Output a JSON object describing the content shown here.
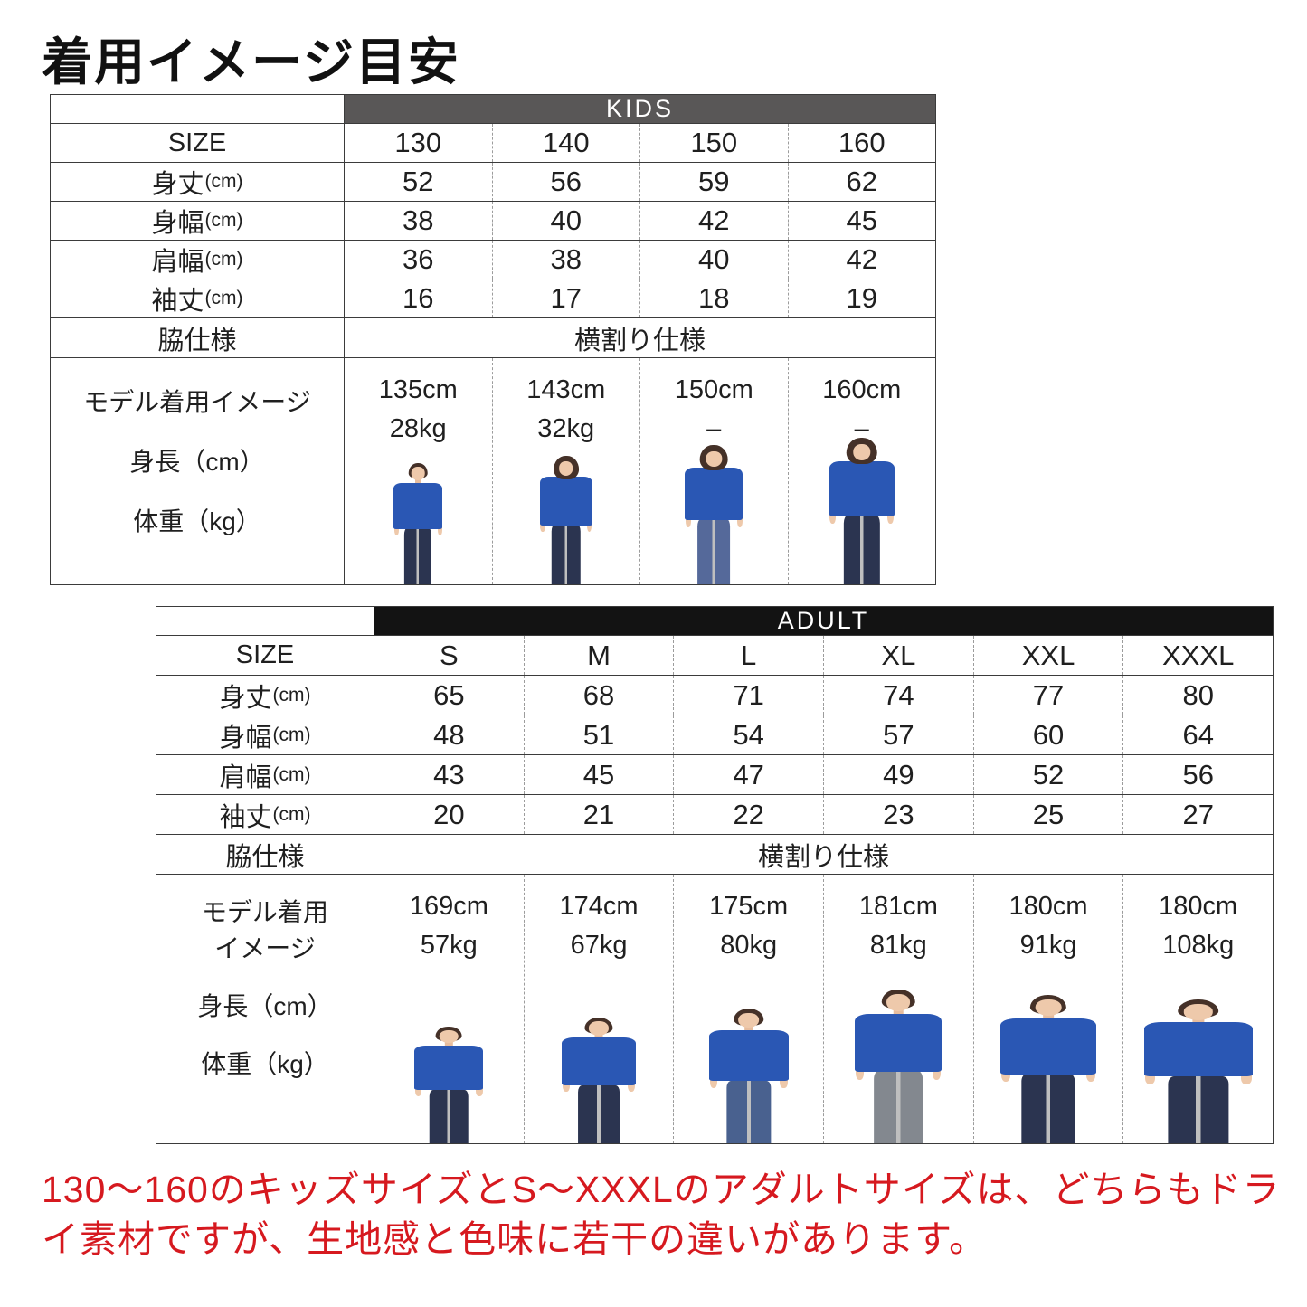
{
  "page": {
    "title": "着用イメージ目安"
  },
  "colors": {
    "kids_bar": "#595757",
    "adult_bar": "#131313",
    "tshirt_blue": "#2a57b4",
    "footnote_red": "#d6191f",
    "table_border": "#3b3b3b"
  },
  "kids_table": {
    "header": "KIDS",
    "size_label": "SIZE",
    "sizes": [
      "130",
      "140",
      "150",
      "160"
    ],
    "rows": [
      {
        "label": "身丈",
        "unit": "(cm)",
        "values": [
          "52",
          "56",
          "59",
          "62"
        ]
      },
      {
        "label": "身幅",
        "unit": "(cm)",
        "values": [
          "38",
          "40",
          "42",
          "45"
        ]
      },
      {
        "label": "肩幅",
        "unit": "(cm)",
        "values": [
          "36",
          "38",
          "40",
          "42"
        ]
      },
      {
        "label": "袖丈",
        "unit": "(cm)",
        "values": [
          "16",
          "17",
          "18",
          "19"
        ]
      }
    ],
    "side_row": {
      "label": "脇仕様",
      "value": "横割り仕様"
    },
    "model_row": {
      "label_lines": [
        "モデル着用イメージ",
        "身長（cm）",
        "体重（kg）"
      ],
      "models": [
        {
          "height": "135cm",
          "weight": "28kg"
        },
        {
          "height": "143cm",
          "weight": "32kg"
        },
        {
          "height": "150cm",
          "weight": "–"
        },
        {
          "height": "160cm",
          "weight": "–"
        }
      ]
    }
  },
  "adult_table": {
    "header": "ADULT",
    "size_label": "SIZE",
    "sizes": [
      "S",
      "M",
      "L",
      "XL",
      "XXL",
      "XXXL"
    ],
    "rows": [
      {
        "label": "身丈",
        "unit": "(cm)",
        "values": [
          "65",
          "68",
          "71",
          "74",
          "77",
          "80"
        ]
      },
      {
        "label": "身幅",
        "unit": "(cm)",
        "values": [
          "48",
          "51",
          "54",
          "57",
          "60",
          "64"
        ]
      },
      {
        "label": "肩幅",
        "unit": "(cm)",
        "values": [
          "43",
          "45",
          "47",
          "49",
          "52",
          "56"
        ]
      },
      {
        "label": "袖丈",
        "unit": "(cm)",
        "values": [
          "20",
          "21",
          "22",
          "23",
          "25",
          "27"
        ]
      }
    ],
    "side_row": {
      "label": "脇仕様",
      "value": "横割り仕様"
    },
    "model_row": {
      "label_lines": [
        "モデル着用",
        "イメージ",
        "身長（cm）",
        "体重（kg）"
      ],
      "models": [
        {
          "height": "169cm",
          "weight": "57kg"
        },
        {
          "height": "174cm",
          "weight": "67kg"
        },
        {
          "height": "175cm",
          "weight": "80kg"
        },
        {
          "height": "181cm",
          "weight": "81kg"
        },
        {
          "height": "180cm",
          "weight": "91kg"
        },
        {
          "height": "180cm",
          "weight": "108kg"
        }
      ]
    }
  },
  "footnote": {
    "text": "130〜160のキッズサイズとS〜XXXLのアダルトサイズは、どちらもドライ素材ですが、生地感と色味に若干の違いがあります。"
  }
}
